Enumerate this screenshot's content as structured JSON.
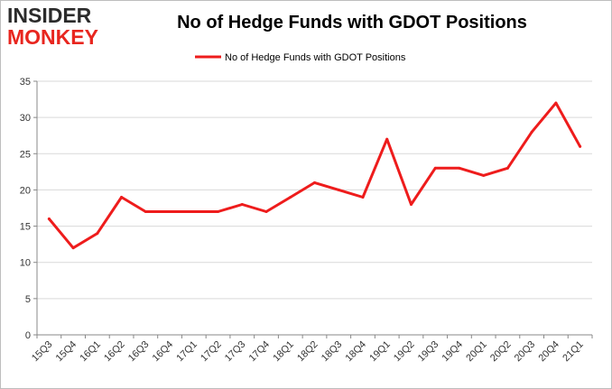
{
  "brand": {
    "line1": "INSIDER",
    "line2": "MONKEY"
  },
  "chart_data": {
    "type": "line",
    "title": "No of Hedge Funds with GDOT Positions",
    "xlabel": "",
    "ylabel": "",
    "ylim": [
      0,
      35
    ],
    "yticks": [
      0,
      5,
      10,
      15,
      20,
      25,
      30,
      35
    ],
    "grid": true,
    "legend": "top-center",
    "categories": [
      "15Q3",
      "15Q4",
      "16Q1",
      "16Q2",
      "16Q3",
      "16Q4",
      "17Q1",
      "17Q2",
      "17Q3",
      "17Q4",
      "18Q1",
      "18Q2",
      "18Q3",
      "18Q4",
      "19Q1",
      "19Q2",
      "19Q3",
      "19Q4",
      "20Q1",
      "20Q2",
      "20Q3",
      "20Q4",
      "21Q1"
    ],
    "series": [
      {
        "name": "No of Hedge Funds with GDOT Positions",
        "color": "#ee1c1c",
        "values": [
          16,
          12,
          14,
          19,
          17,
          17,
          17,
          17,
          18,
          17,
          19,
          21,
          20,
          19,
          27,
          18,
          23,
          23,
          22,
          23,
          28,
          32,
          26
        ]
      }
    ]
  }
}
